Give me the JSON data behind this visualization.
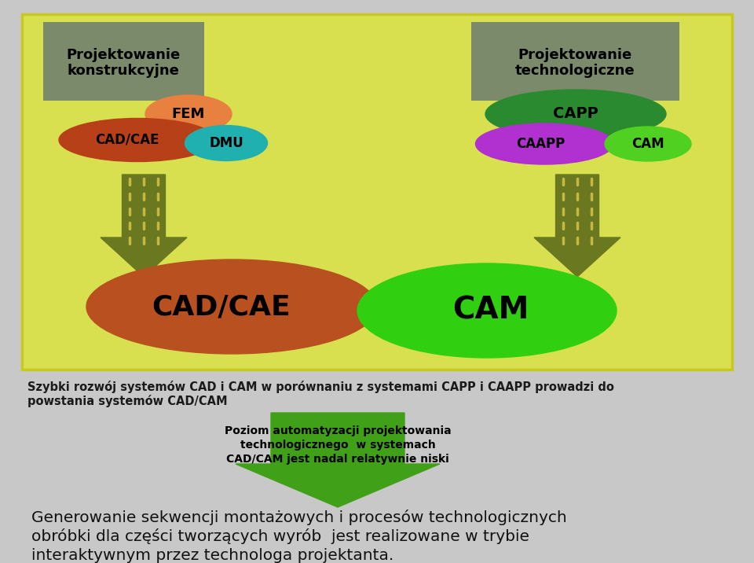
{
  "inner_bg_color": "#d8e050",
  "outer_border_color": "#c8c820",
  "box_bg_color": "#7a8a6a",
  "fem_color": "#e88040",
  "cad_cae_small_color": "#b84018",
  "dmu_color": "#20b0b0",
  "capp_dark_color": "#2a8a30",
  "caapp_color": "#b030d0",
  "cam_small_color": "#50d020",
  "cad_cae_large_color": "#b85020",
  "cam_large_color": "#30d010",
  "arrow_down_color_light": "#c8b840",
  "arrow_down_color_dark": "#6a7820",
  "green_arrow_color": "#40a018",
  "bottom_text_line1": "Szybki rozwój systemów CAD i CAM w porównaniu z systemami CAPP i CAAPP prowadzi do",
  "bottom_text_line2": "powstania systemów CAD/CAM",
  "arrow_text_line1": "Poziom automatyzacji projektowania",
  "arrow_text_line2": "technologicznego  w systemach",
  "arrow_text_line3": "CAD/CAM jest nadal relatywnie niski",
  "final_text_line1": "Generowanie sekwencji montażowych i procesów technologicznych",
  "final_text_line2": "obróbki dla części tworzących wyrób  jest realizowane w trybie",
  "final_text_line3": "interaktywnym przez technologa projektanta.",
  "left_box_title": "Projektowanie\nkonstrukcyjne",
  "right_box_title": "Projektowanie\ntechnologiczne"
}
